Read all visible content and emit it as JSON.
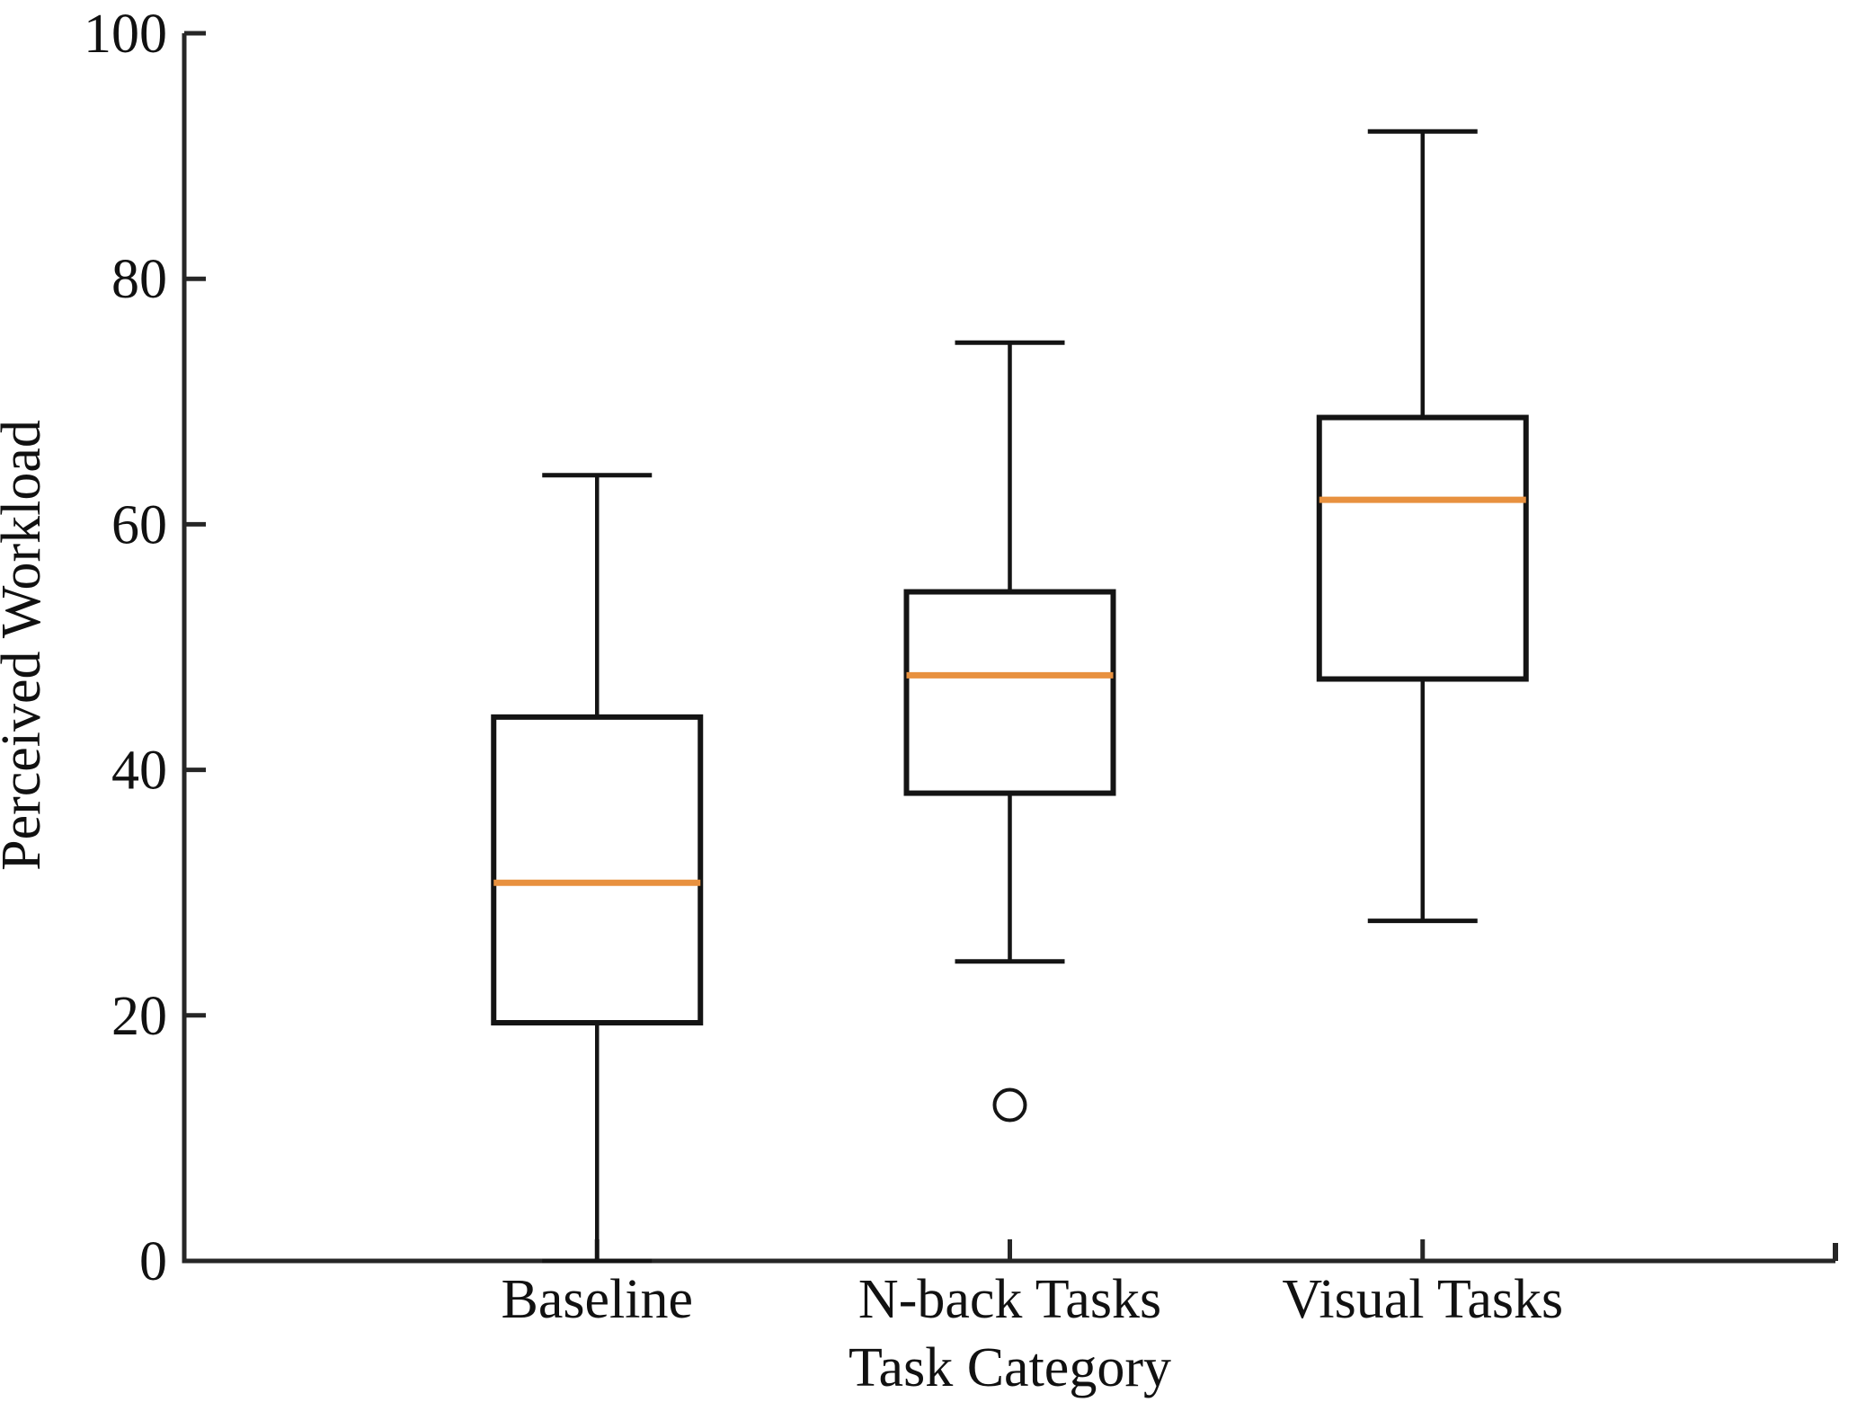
{
  "figure": {
    "background": "#ffffff"
  },
  "chart_data": {
    "type": "boxplot",
    "title": "",
    "xlabel": "Task Category",
    "ylabel": "Perceived Workload",
    "categories": [
      "Baseline",
      "N-back Tasks",
      "Visual Tasks"
    ],
    "ylim": [
      0,
      100
    ],
    "yticks": [
      0,
      20,
      40,
      60,
      80,
      100
    ],
    "grid": false,
    "legend": "none",
    "series": [
      {
        "name": "Baseline",
        "whisker_low": 0,
        "q1": 19.4,
        "median": 30.8,
        "q3": 44.3,
        "whisker_high": 64.0,
        "outliers": []
      },
      {
        "name": "N-back Tasks",
        "whisker_low": 24.4,
        "q1": 38.1,
        "median": 47.7,
        "q3": 54.5,
        "whisker_high": 74.8,
        "outliers": [
          12.7
        ]
      },
      {
        "name": "Visual Tasks",
        "whisker_low": 27.7,
        "q1": 47.4,
        "median": 62.0,
        "q3": 68.7,
        "whisker_high": 92.0,
        "outliers": []
      }
    ],
    "colors": {
      "axis": "#262626",
      "box_stroke": "#141414",
      "box_fill": "#ffffff",
      "median": "#E8913F",
      "outlier_stroke": "#141414",
      "text": "#111111"
    }
  }
}
